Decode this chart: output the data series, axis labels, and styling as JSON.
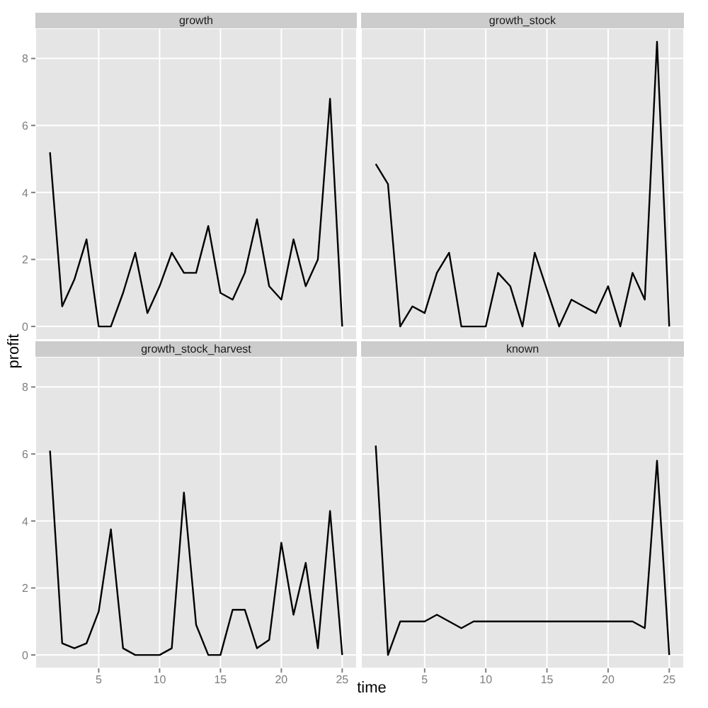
{
  "chart_data": [
    {
      "type": "line",
      "title": "growth",
      "x": [
        1,
        2,
        3,
        4,
        5,
        6,
        7,
        8,
        9,
        10,
        11,
        12,
        13,
        14,
        15,
        16,
        17,
        18,
        19,
        20,
        21,
        22,
        23,
        24,
        25
      ],
      "series": [
        {
          "color": "#000000",
          "values": [
            5.2,
            0.6,
            1.4,
            2.6,
            0,
            0,
            1.0,
            2.2,
            0.4,
            1.2,
            2.2,
            1.6,
            1.6,
            3.0,
            1.0,
            0.8,
            1.6,
            3.2,
            1.2,
            0.8,
            2.6,
            1.2,
            2.0,
            6.8,
            0
          ]
        }
      ],
      "xlim": [
        -0.2,
        26.2
      ],
      "ylim": [
        -0.4,
        8.9
      ],
      "xticks": [
        5,
        10,
        15,
        20,
        25
      ],
      "yticks": [
        0,
        2,
        4,
        6,
        8
      ],
      "grid": true,
      "tick_labels": "y"
    },
    {
      "type": "line",
      "title": "growth_stock",
      "x": [
        1,
        2,
        3,
        4,
        5,
        6,
        7,
        8,
        9,
        10,
        11,
        12,
        13,
        14,
        15,
        16,
        17,
        18,
        19,
        20,
        21,
        22,
        23,
        24,
        25
      ],
      "series": [
        {
          "color": "#000000",
          "values": [
            4.85,
            4.25,
            0,
            0.6,
            0.4,
            1.6,
            2.2,
            0,
            0,
            0,
            1.6,
            1.2,
            0,
            2.2,
            1.1,
            0,
            0.8,
            0.6,
            0.4,
            1.2,
            0,
            1.6,
            0.8,
            8.5,
            0
          ]
        }
      ],
      "xlim": [
        -0.2,
        26.2
      ],
      "ylim": [
        -0.4,
        8.9
      ],
      "xticks": [
        5,
        10,
        15,
        20,
        25
      ],
      "yticks": [
        0,
        2,
        4,
        6,
        8
      ],
      "grid": true,
      "tick_labels": false
    },
    {
      "type": "line",
      "title": "growth_stock_harvest",
      "xlabel": "time",
      "ylabel": "profit",
      "x": [
        1,
        2,
        3,
        4,
        5,
        6,
        7,
        8,
        9,
        10,
        11,
        12,
        13,
        14,
        15,
        16,
        17,
        18,
        19,
        20,
        21,
        22,
        23,
        24,
        25
      ],
      "series": [
        {
          "color": "#000000",
          "values": [
            6.1,
            0.35,
            0.2,
            0.35,
            1.3,
            3.75,
            0.2,
            0,
            0,
            0,
            0.2,
            4.85,
            0.9,
            0,
            0,
            1.35,
            1.35,
            0.2,
            0.45,
            3.35,
            1.2,
            2.75,
            0.2,
            4.3,
            0
          ]
        }
      ],
      "xlim": [
        -0.2,
        26.2
      ],
      "ylim": [
        -0.4,
        8.9
      ],
      "xticks": [
        5,
        10,
        15,
        20,
        25
      ],
      "yticks": [
        0,
        2,
        4,
        6,
        8
      ],
      "grid": true
    },
    {
      "type": "line",
      "title": "known",
      "x": [
        1,
        2,
        3,
        4,
        5,
        6,
        7,
        8,
        9,
        10,
        11,
        12,
        13,
        14,
        15,
        16,
        17,
        18,
        19,
        20,
        21,
        22,
        23,
        24,
        25
      ],
      "series": [
        {
          "color": "#000000",
          "values": [
            6.25,
            0,
            1,
            1,
            1,
            1.2,
            1,
            0.8,
            1,
            1,
            1,
            1,
            1,
            1,
            1,
            1,
            1,
            1,
            1,
            1,
            1,
            1,
            0.8,
            5.8,
            0
          ]
        }
      ],
      "xlim": [
        -0.2,
        26.2
      ],
      "ylim": [
        -0.4,
        8.9
      ],
      "xticks": [
        5,
        10,
        15,
        20,
        25
      ],
      "yticks": [
        0,
        2,
        4,
        6,
        8
      ],
      "grid": true,
      "tick_labels": "x"
    }
  ]
}
